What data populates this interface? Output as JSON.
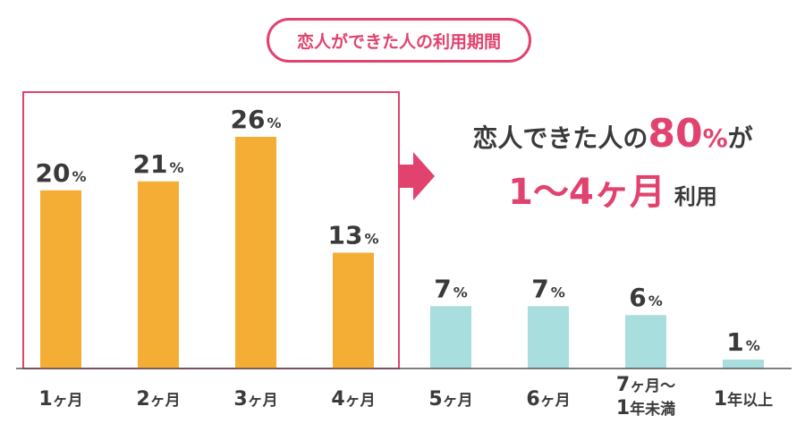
{
  "title": "恋人ができた人の利用期間",
  "callout": {
    "line1_prefix": "恋人できた人の",
    "highlight_value": "80",
    "highlight_unit": "%",
    "line1_suffix": "が",
    "range": "1〜4ヶ月",
    "line2_suffix": "利用"
  },
  "colors": {
    "accent": "#e2426e",
    "highlight_bars": "#f4ae35",
    "other_bars": "#a8dedd",
    "text": "#3a3a3a"
  },
  "chart_data": {
    "type": "bar",
    "categories": [
      "1ヶ月",
      "2ヶ月",
      "3ヶ月",
      "4ヶ月",
      "5ヶ月",
      "6ヶ月",
      "7ヶ月〜\n1年未満",
      "1年以上"
    ],
    "values": [
      20,
      21,
      26,
      13,
      7,
      7,
      6,
      1
    ],
    "unit": "%",
    "highlighted_range": [
      "1ヶ月",
      "4ヶ月"
    ],
    "ylim": [
      0,
      26
    ],
    "grid": false,
    "legend": "none"
  }
}
